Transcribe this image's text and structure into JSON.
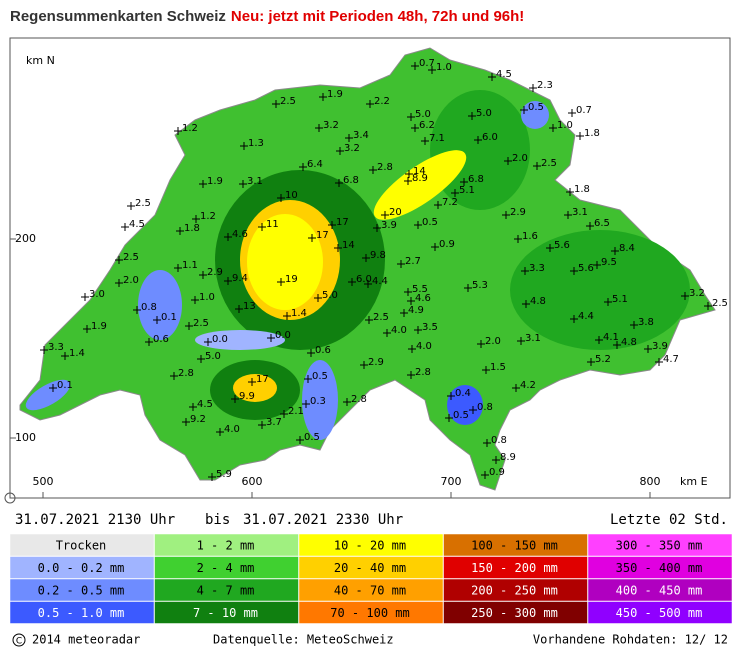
{
  "header": {
    "title": "Regensummenkarten Schweiz",
    "notice": "Neu: jetzt mit Perioden 48h, 72h und 96h!"
  },
  "map": {
    "north_label": "km N",
    "east_label": "km E",
    "y_ticks": [
      "200",
      "100"
    ],
    "x_ticks": [
      "500",
      "600",
      "700",
      "800"
    ],
    "stations": [
      "0.7",
      "1.0",
      "4.5",
      "2.3",
      "1.9",
      "2.5",
      "2.2",
      "0.5",
      "0.7",
      "5.0",
      "5.0",
      "1.2",
      "3.2",
      "6.2",
      "1.0",
      "1.8",
      "3.4",
      "7.1",
      "6.0",
      "1.3",
      "3.2",
      "2.0",
      "2.5",
      "6.4",
      "2.8",
      "14",
      "6.8",
      "3.1",
      "6.8",
      "8.9",
      "5.1",
      "1.9",
      "1.8",
      "10",
      "7.2",
      "2.5",
      "1.2",
      "20",
      "2.9",
      "3.1",
      "17",
      "3.9",
      "0.5",
      "6.5",
      "1.8",
      "11",
      "4.5",
      "4.6",
      "17",
      "14",
      "0.9",
      "1.6",
      "5.6",
      "8.4",
      "2.5",
      "9.8",
      "2.7",
      "9.5",
      "1.1",
      "2.9",
      "3.3",
      "5.6",
      "2.0",
      "9.4",
      "19",
      "6.0",
      "4.4",
      "5.5",
      "5.3",
      "3.0",
      "1.0",
      "5.0",
      "4.6",
      "4.8",
      "5.1",
      "3.2",
      "2.5",
      "0.8",
      "4.9",
      "13",
      "1.4",
      "0.1",
      "2.5",
      "2.5",
      "4.4",
      "3.8",
      "1.9",
      "3.5",
      "0.6",
      "4.0",
      "0.0",
      "0.0",
      "2.0",
      "3.1",
      "4.1",
      "4.8",
      "3.3",
      "1.4",
      "4.0",
      "5.0",
      "0.6",
      "3.9",
      "5.2",
      "4.7",
      "2.9",
      "2.8",
      "17",
      "1.5",
      "2.8",
      "0.5",
      "4.2",
      "0.1",
      "9.9",
      "0.4",
      "2.8",
      "0.3",
      "0.8",
      "2.1",
      "4.5",
      "0.5",
      "3.7",
      "9.2",
      "4.0",
      "0.5",
      "0.8",
      "8.9",
      "0.9",
      "5.9"
    ]
  },
  "period": {
    "start": "31.07.2021 2130 Uhr",
    "separator": "bis",
    "end": "31.07.2021 2330 Uhr",
    "duration": "Letzte 02 Std."
  },
  "legend": {
    "items": [
      {
        "label": "Trocken",
        "color": "#e8e8e8"
      },
      {
        "label": "0.0 - 0.2 mm",
        "color": "#a0b4ff"
      },
      {
        "label": "0.2 - 0.5 mm",
        "color": "#6e8cff"
      },
      {
        "label": "0.5 - 1.0 mm",
        "color": "#3c5aff"
      },
      {
        "label": "1 - 2 mm",
        "color": "#a0f080"
      },
      {
        "label": "2 - 4 mm",
        "color": "#40d030"
      },
      {
        "label": "4 - 7 mm",
        "color": "#20a820"
      },
      {
        "label": "7 - 10 mm",
        "color": "#108010"
      },
      {
        "label": "10 - 20 mm",
        "color": "#ffff00"
      },
      {
        "label": "20 - 40 mm",
        "color": "#ffd000"
      },
      {
        "label": "40 - 70 mm",
        "color": "#ffa000"
      },
      {
        "label": "70 - 100 mm",
        "color": "#ff7800"
      },
      {
        "label": "100 - 150 mm",
        "color": "#d87000"
      },
      {
        "label": "150 - 200 mm",
        "color": "#e00000"
      },
      {
        "label": "200 - 250 mm",
        "color": "#b00000"
      },
      {
        "label": "250 - 300 mm",
        "color": "#800000"
      },
      {
        "label": "300 - 350 mm",
        "color": "#ff40ff"
      },
      {
        "label": "350 - 400 mm",
        "color": "#e000e0"
      },
      {
        "label": "400 - 450 mm",
        "color": "#b000c0"
      },
      {
        "label": "450 - 500 mm",
        "color": "#9000ff"
      }
    ]
  },
  "footer": {
    "copyright": "2014 meteoradar",
    "source": "Datenquelle: MeteoSchweiz",
    "raw": "Vorhandene Rohdaten:  12/ 12"
  }
}
